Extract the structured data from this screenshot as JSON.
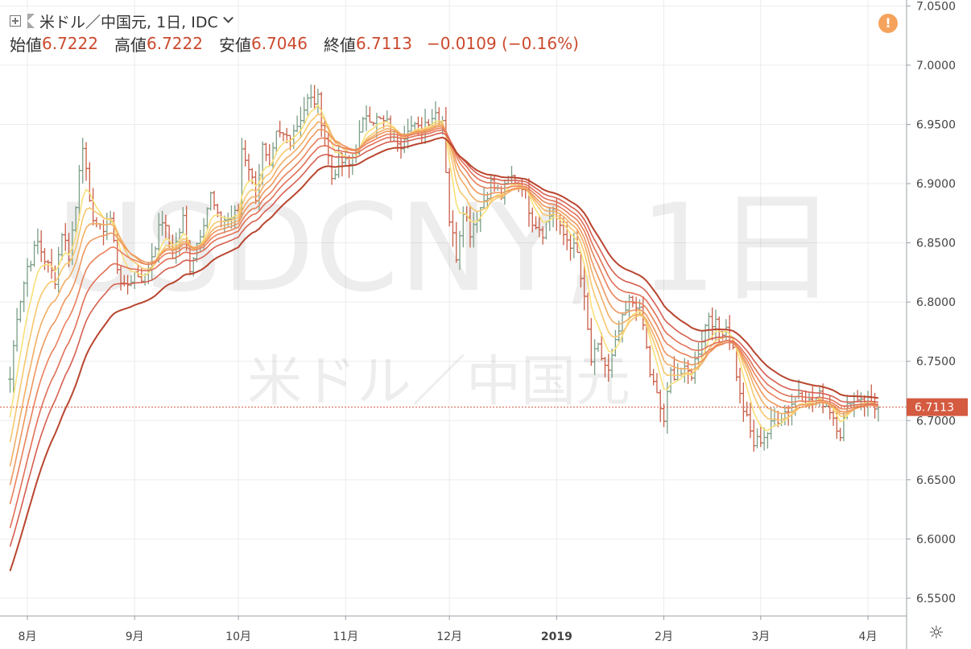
{
  "header": {
    "title": "米ドル／中国元, 1日, IDC",
    "ohlc": [
      {
        "label": "始値",
        "value": "6.7222"
      },
      {
        "label": "高値",
        "value": "6.7222"
      },
      {
        "label": "安値",
        "value": "6.7046"
      },
      {
        "label": "終値",
        "value": "6.7113"
      }
    ],
    "change": "−0.0109 (−0.16%)"
  },
  "watermark": {
    "symbol": "USDCNY, 1日",
    "name": "米ドル／中国元"
  },
  "colors": {
    "up": "#7a9e86",
    "down": "#c95d47",
    "price_tag": "#d45a40",
    "ribbon": [
      "#f9e07a",
      "#f7c76e",
      "#f2ae65",
      "#ee975f",
      "#e9815b",
      "#e16f56",
      "#d65f50",
      "#b9452f"
    ]
  },
  "chart_data": {
    "type": "ohlc",
    "overlays": "8 moving-average ribbon lines",
    "y_ticks": [
      "7.0500",
      "7.0000",
      "6.9500",
      "6.9000",
      "6.8500",
      "6.8000",
      "6.7500",
      "6.7000",
      "6.6500",
      "6.6000",
      "6.5500"
    ],
    "ylim": [
      6.535,
      7.055
    ],
    "x_ticks": [
      {
        "label": "8月",
        "day": 0
      },
      {
        "label": "9月",
        "day": 31
      },
      {
        "label": "10月",
        "day": 61
      },
      {
        "label": "11月",
        "day": 92
      },
      {
        "label": "12月",
        "day": 122
      },
      {
        "label": "2019",
        "day": 153
      },
      {
        "label": "2月",
        "day": 184
      },
      {
        "label": "3月",
        "day": 212
      },
      {
        "label": "4月",
        "day": 243
      }
    ],
    "xlim_days": [
      -5,
      248
    ],
    "last_price": "6.7113",
    "close_anchors": [
      [
        -5,
        6.735
      ],
      [
        -3,
        6.79
      ],
      [
        0,
        6.83
      ],
      [
        3,
        6.85
      ],
      [
        6,
        6.83
      ],
      [
        8,
        6.82
      ],
      [
        10,
        6.86
      ],
      [
        12,
        6.84
      ],
      [
        14,
        6.88
      ],
      [
        15,
        6.915
      ],
      [
        16,
        6.935
      ],
      [
        18,
        6.88
      ],
      [
        21,
        6.86
      ],
      [
        24,
        6.87
      ],
      [
        26,
        6.83
      ],
      [
        28,
        6.81
      ],
      [
        31,
        6.825
      ],
      [
        34,
        6.82
      ],
      [
        37,
        6.85
      ],
      [
        39,
        6.87
      ],
      [
        42,
        6.84
      ],
      [
        45,
        6.87
      ],
      [
        47,
        6.83
      ],
      [
        50,
        6.86
      ],
      [
        53,
        6.89
      ],
      [
        55,
        6.87
      ],
      [
        58,
        6.87
      ],
      [
        61,
        6.875
      ],
      [
        62,
        6.93
      ],
      [
        64,
        6.915
      ],
      [
        66,
        6.89
      ],
      [
        68,
        6.93
      ],
      [
        70,
        6.91
      ],
      [
        72,
        6.94
      ],
      [
        75,
        6.94
      ],
      [
        78,
        6.95
      ],
      [
        81,
        6.97
      ],
      [
        84,
        6.97
      ],
      [
        86,
        6.94
      ],
      [
        88,
        6.905
      ],
      [
        90,
        6.92
      ],
      [
        93,
        6.915
      ],
      [
        95,
        6.93
      ],
      [
        98,
        6.96
      ],
      [
        100,
        6.955
      ],
      [
        104,
        6.95
      ],
      [
        106,
        6.94
      ],
      [
        108,
        6.935
      ],
      [
        110,
        6.95
      ],
      [
        113,
        6.945
      ],
      [
        116,
        6.955
      ],
      [
        118,
        6.96
      ],
      [
        120,
        6.955
      ],
      [
        122,
        6.87
      ],
      [
        124,
        6.84
      ],
      [
        126,
        6.88
      ],
      [
        128,
        6.86
      ],
      [
        131,
        6.88
      ],
      [
        134,
        6.9
      ],
      [
        137,
        6.89
      ],
      [
        140,
        6.905
      ],
      [
        143,
        6.9
      ],
      [
        146,
        6.87
      ],
      [
        149,
        6.86
      ],
      [
        152,
        6.88
      ],
      [
        154,
        6.86
      ],
      [
        157,
        6.85
      ],
      [
        159,
        6.84
      ],
      [
        161,
        6.8
      ],
      [
        163,
        6.75
      ],
      [
        165,
        6.76
      ],
      [
        168,
        6.74
      ],
      [
        171,
        6.775
      ],
      [
        174,
        6.8
      ],
      [
        176,
        6.8
      ],
      [
        178,
        6.78
      ],
      [
        180,
        6.74
      ],
      [
        182,
        6.72
      ],
      [
        184,
        6.7
      ],
      [
        186,
        6.74
      ],
      [
        188,
        6.74
      ],
      [
        192,
        6.74
      ],
      [
        195,
        6.77
      ],
      [
        197,
        6.79
      ],
      [
        200,
        6.775
      ],
      [
        202,
        6.78
      ],
      [
        204,
        6.76
      ],
      [
        206,
        6.72
      ],
      [
        208,
        6.7
      ],
      [
        210,
        6.68
      ],
      [
        212,
        6.685
      ],
      [
        214,
        6.69
      ],
      [
        216,
        6.7
      ],
      [
        218,
        6.705
      ],
      [
        220,
        6.71
      ],
      [
        223,
        6.725
      ],
      [
        226,
        6.715
      ],
      [
        229,
        6.72
      ],
      [
        232,
        6.71
      ],
      [
        235,
        6.69
      ],
      [
        238,
        6.72
      ],
      [
        241,
        6.72
      ],
      [
        244,
        6.715
      ],
      [
        246,
        6.711
      ]
    ],
    "ribbon_periods": [
      6,
      10,
      14,
      18,
      23,
      28,
      34,
      42
    ],
    "ribbon_start_values": [
      6.69,
      6.67,
      6.65,
      6.635,
      6.62,
      6.6,
      6.585,
      6.565
    ]
  }
}
